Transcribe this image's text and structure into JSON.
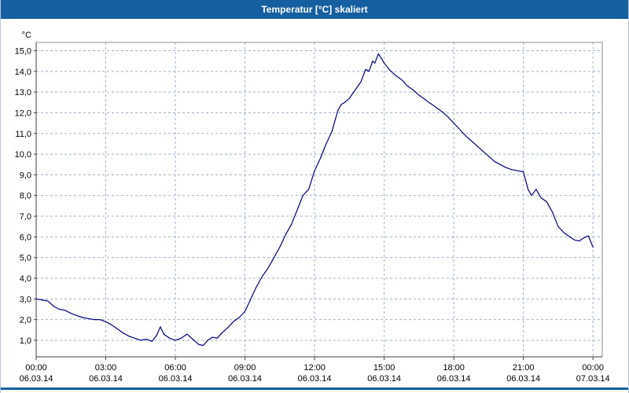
{
  "window": {
    "title": "Temperatur [°C] skaliert",
    "titlebar_color": "#155FA0"
  },
  "chart_data": {
    "type": "line",
    "title": "Temperatur [°C] skaliert",
    "xlabel": "",
    "ylabel": "°C",
    "xlim_hours": [
      0,
      24.4
    ],
    "ylim": [
      0.2,
      15.4
    ],
    "grid": "dashed",
    "legend": "none",
    "line_color": "#000080",
    "grid_color": "#9FB0CC",
    "axis_color": "#404040",
    "border_color": "#8C8C8C",
    "y_ticks": [
      {
        "value": 1,
        "label": "1,0"
      },
      {
        "value": 2,
        "label": "2,0"
      },
      {
        "value": 3,
        "label": "3,0"
      },
      {
        "value": 4,
        "label": "4,0"
      },
      {
        "value": 5,
        "label": "5,0"
      },
      {
        "value": 6,
        "label": "6,0"
      },
      {
        "value": 7,
        "label": "7,0"
      },
      {
        "value": 8,
        "label": "8,0"
      },
      {
        "value": 9,
        "label": "9,0"
      },
      {
        "value": 10,
        "label": "10,0"
      },
      {
        "value": 11,
        "label": "11,0"
      },
      {
        "value": 12,
        "label": "12,0"
      },
      {
        "value": 13,
        "label": "13,0"
      },
      {
        "value": 14,
        "label": "14,0"
      },
      {
        "value": 15,
        "label": "15,0"
      }
    ],
    "x_ticks": [
      {
        "hour": 0,
        "time": "00:00",
        "date": "06.03.14"
      },
      {
        "hour": 3,
        "time": "03:00",
        "date": "06.03.14"
      },
      {
        "hour": 6,
        "time": "06:00",
        "date": "06.03.14"
      },
      {
        "hour": 9,
        "time": "09:00",
        "date": "06.03.14"
      },
      {
        "hour": 12,
        "time": "12:00",
        "date": "06.03.14"
      },
      {
        "hour": 15,
        "time": "15:00",
        "date": "06.03.14"
      },
      {
        "hour": 18,
        "time": "18:00",
        "date": "06.03.14"
      },
      {
        "hour": 21,
        "time": "21:00",
        "date": "06.03.14"
      },
      {
        "hour": 24,
        "time": "00:00",
        "date": "07.03.14"
      }
    ],
    "series": [
      {
        "name": "Temperatur [°C]",
        "points": [
          [
            0,
            3.0
          ],
          [
            0.25,
            2.95
          ],
          [
            0.5,
            2.9
          ],
          [
            0.75,
            2.65
          ],
          [
            1,
            2.5
          ],
          [
            1.25,
            2.45
          ],
          [
            1.5,
            2.3
          ],
          [
            1.75,
            2.2
          ],
          [
            2,
            2.1
          ],
          [
            2.25,
            2.05
          ],
          [
            2.5,
            2.0
          ],
          [
            2.75,
            2.0
          ],
          [
            3,
            1.9
          ],
          [
            3.25,
            1.75
          ],
          [
            3.5,
            1.55
          ],
          [
            3.75,
            1.35
          ],
          [
            4,
            1.2
          ],
          [
            4.25,
            1.1
          ],
          [
            4.5,
            1.0
          ],
          [
            4.75,
            1.05
          ],
          [
            5,
            0.95
          ],
          [
            5.2,
            1.25
          ],
          [
            5.35,
            1.65
          ],
          [
            5.5,
            1.3
          ],
          [
            5.75,
            1.1
          ],
          [
            6,
            1.0
          ],
          [
            6.25,
            1.1
          ],
          [
            6.5,
            1.3
          ],
          [
            6.75,
            1.05
          ],
          [
            7,
            0.8
          ],
          [
            7.2,
            0.75
          ],
          [
            7.4,
            1.0
          ],
          [
            7.6,
            1.15
          ],
          [
            7.8,
            1.1
          ],
          [
            8,
            1.35
          ],
          [
            8.25,
            1.6
          ],
          [
            8.5,
            1.9
          ],
          [
            8.75,
            2.1
          ],
          [
            9,
            2.4
          ],
          [
            9.25,
            3.0
          ],
          [
            9.5,
            3.6
          ],
          [
            9.75,
            4.1
          ],
          [
            10,
            4.5
          ],
          [
            10.25,
            5.0
          ],
          [
            10.5,
            5.5
          ],
          [
            10.75,
            6.1
          ],
          [
            11,
            6.6
          ],
          [
            11.25,
            7.3
          ],
          [
            11.5,
            8.0
          ],
          [
            11.75,
            8.3
          ],
          [
            12,
            9.2
          ],
          [
            12.25,
            9.8
          ],
          [
            12.5,
            10.5
          ],
          [
            12.75,
            11.1
          ],
          [
            13,
            12.1
          ],
          [
            13.15,
            12.4
          ],
          [
            13.3,
            12.5
          ],
          [
            13.5,
            12.7
          ],
          [
            13.75,
            13.1
          ],
          [
            14,
            13.5
          ],
          [
            14.2,
            14.1
          ],
          [
            14.35,
            14.0
          ],
          [
            14.5,
            14.5
          ],
          [
            14.6,
            14.4
          ],
          [
            14.75,
            14.85
          ],
          [
            14.9,
            14.6
          ],
          [
            15,
            14.4
          ],
          [
            15.25,
            14.05
          ],
          [
            15.5,
            13.8
          ],
          [
            15.75,
            13.6
          ],
          [
            16,
            13.3
          ],
          [
            16.25,
            13.1
          ],
          [
            16.5,
            12.85
          ],
          [
            16.75,
            12.65
          ],
          [
            17,
            12.45
          ],
          [
            17.25,
            12.25
          ],
          [
            17.5,
            12.05
          ],
          [
            17.75,
            11.8
          ],
          [
            18,
            11.5
          ],
          [
            18.25,
            11.2
          ],
          [
            18.5,
            10.9
          ],
          [
            18.75,
            10.65
          ],
          [
            19,
            10.4
          ],
          [
            19.25,
            10.15
          ],
          [
            19.5,
            9.9
          ],
          [
            19.75,
            9.65
          ],
          [
            20,
            9.5
          ],
          [
            20.25,
            9.35
          ],
          [
            20.5,
            9.25
          ],
          [
            20.75,
            9.2
          ],
          [
            21,
            9.15
          ],
          [
            21.2,
            8.3
          ],
          [
            21.35,
            8.0
          ],
          [
            21.55,
            8.3
          ],
          [
            21.75,
            7.9
          ],
          [
            22,
            7.7
          ],
          [
            22.25,
            7.2
          ],
          [
            22.5,
            6.5
          ],
          [
            22.75,
            6.2
          ],
          [
            23,
            6.0
          ],
          [
            23.2,
            5.85
          ],
          [
            23.4,
            5.8
          ],
          [
            23.6,
            5.95
          ],
          [
            23.8,
            6.05
          ],
          [
            24,
            5.5
          ]
        ]
      }
    ]
  }
}
